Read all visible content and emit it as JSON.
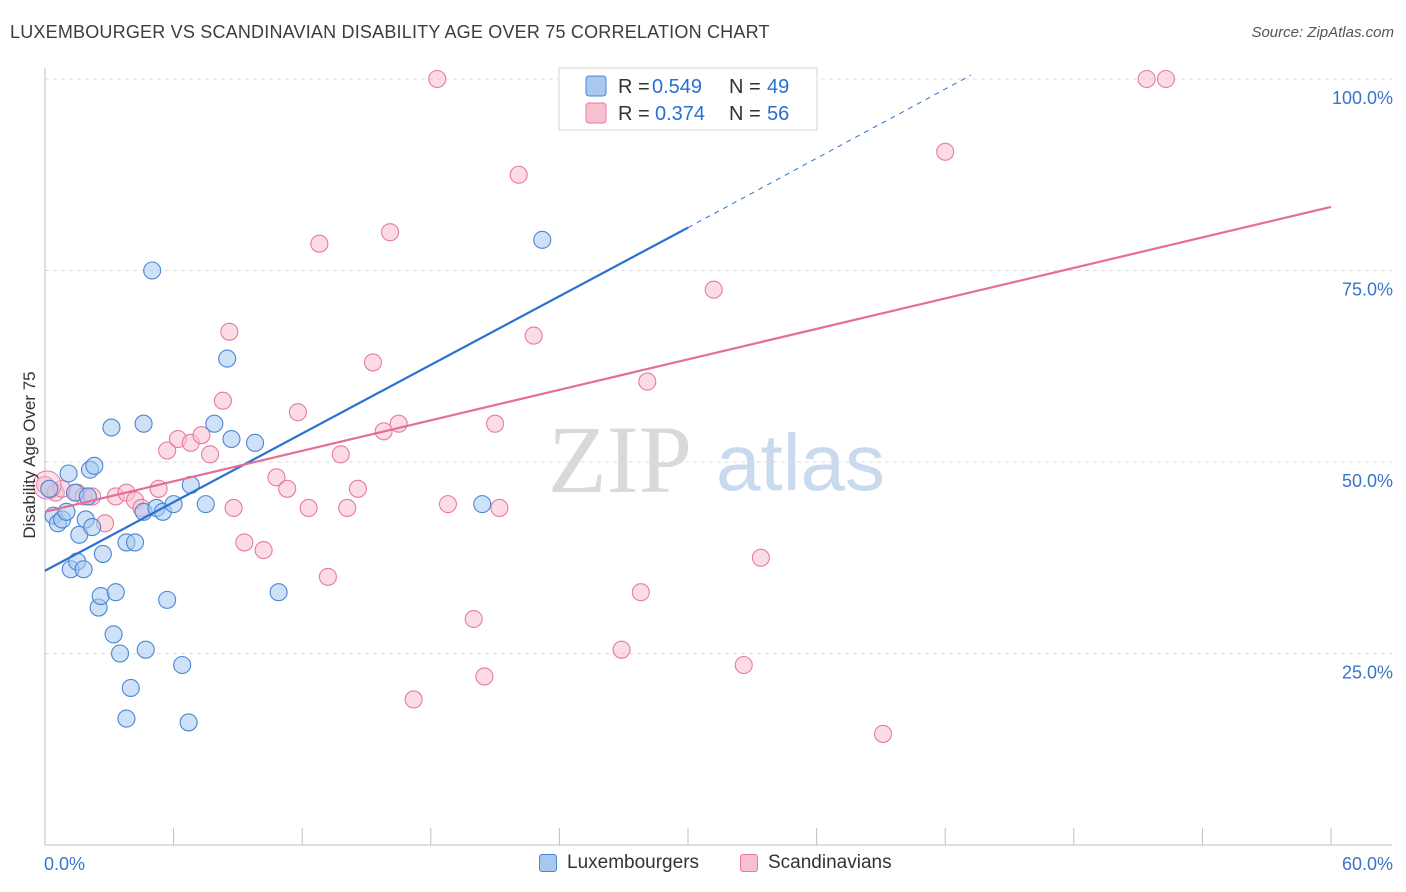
{
  "title": "LUXEMBOURGER VS SCANDINAVIAN DISABILITY AGE OVER 75 CORRELATION CHART",
  "source": "Source: ZipAtlas.com",
  "watermark": {
    "zip": "ZIP",
    "atlas": "atlas"
  },
  "colors": {
    "blue_fill": "#a8c8f0",
    "blue_stroke": "#4a86d4",
    "blue_line": "#2a72d0",
    "pink_fill": "#f7bfd0",
    "pink_stroke": "#e87aa0",
    "pink_line": "#e46e96",
    "tick_label": "#3a74c8",
    "grid": "#d8d8d8"
  },
  "legend": {
    "rows": [
      {
        "r_label": "R =",
        "r_value": "0.549",
        "n_label": "N =",
        "n_value": "49"
      },
      {
        "r_label": "R =",
        "r_value": "0.374",
        "n_label": "N =",
        "n_value": "56"
      }
    ]
  },
  "bottom_legend": {
    "series1": "Luxembourgers",
    "series2": "Scandinavians"
  },
  "chart_data": {
    "type": "scatter",
    "title": "LUXEMBOURGER VS SCANDINAVIAN DISABILITY AGE OVER 75 CORRELATION CHART",
    "xlabel": "",
    "ylabel": "Disability Age Over 75",
    "xlim": [
      0,
      60
    ],
    "ylim": [
      0,
      104
    ],
    "x_tick_labels": [
      "0.0%",
      "60.0%"
    ],
    "y_ticks": [
      25,
      50,
      75,
      100
    ],
    "y_tick_labels": [
      "25.0%",
      "50.0%",
      "75.0%",
      "100.0%"
    ],
    "grid": "horizontal dashed",
    "legend_position": "top-center",
    "series": [
      {
        "name": "Luxembourgers",
        "color": "#4a86d4",
        "r": 0.549,
        "n": 49,
        "trend": {
          "x0": 0,
          "y0": 35.8,
          "x1": 30,
          "y1": 80.6,
          "dashed_to_x": 43.2,
          "dashed_to_y": 100.5
        },
        "points": [
          [
            0.2,
            46.5
          ],
          [
            0.4,
            43.0
          ],
          [
            0.6,
            42.0
          ],
          [
            0.8,
            42.5
          ],
          [
            1.0,
            43.5
          ],
          [
            1.1,
            48.5
          ],
          [
            1.2,
            36.0
          ],
          [
            1.4,
            46.0
          ],
          [
            1.5,
            37.0
          ],
          [
            1.6,
            40.5
          ],
          [
            1.8,
            36.0
          ],
          [
            1.9,
            42.5
          ],
          [
            2.0,
            45.5
          ],
          [
            2.1,
            49.0
          ],
          [
            2.2,
            41.5
          ],
          [
            2.3,
            49.5
          ],
          [
            2.5,
            31.0
          ],
          [
            2.6,
            32.5
          ],
          [
            2.7,
            38.0
          ],
          [
            3.1,
            54.5
          ],
          [
            3.2,
            27.5
          ],
          [
            3.3,
            33.0
          ],
          [
            3.5,
            25.0
          ],
          [
            3.8,
            39.5
          ],
          [
            3.8,
            16.5
          ],
          [
            4.0,
            20.5
          ],
          [
            4.2,
            39.5
          ],
          [
            4.6,
            43.5
          ],
          [
            4.6,
            55.0
          ],
          [
            4.7,
            25.5
          ],
          [
            5.0,
            75.0
          ],
          [
            5.2,
            44.0
          ],
          [
            5.5,
            43.5
          ],
          [
            5.7,
            32.0
          ],
          [
            6.0,
            44.5
          ],
          [
            6.4,
            23.5
          ],
          [
            6.7,
            16.0
          ],
          [
            6.8,
            47.0
          ],
          [
            7.5,
            44.5
          ],
          [
            7.9,
            55.0
          ],
          [
            8.5,
            63.5
          ],
          [
            8.7,
            53.0
          ],
          [
            9.8,
            52.5
          ],
          [
            10.9,
            33.0
          ],
          [
            20.4,
            44.5
          ],
          [
            23.2,
            79.0
          ]
        ]
      },
      {
        "name": "Scandinavians",
        "color": "#e87aa0",
        "r": 0.374,
        "n": 56,
        "trend": {
          "x0": 0,
          "y0": 43.5,
          "x1": 60,
          "y1": 83.3
        },
        "points": [
          [
            0.0,
            47.0
          ],
          [
            0.5,
            46.0
          ],
          [
            0.8,
            46.5
          ],
          [
            1.5,
            46.0
          ],
          [
            1.8,
            45.5
          ],
          [
            2.2,
            45.5
          ],
          [
            2.8,
            42.0
          ],
          [
            3.3,
            45.5
          ],
          [
            3.8,
            46.0
          ],
          [
            4.2,
            45.0
          ],
          [
            4.5,
            44.0
          ],
          [
            5.3,
            46.5
          ],
          [
            5.7,
            51.5
          ],
          [
            6.2,
            53.0
          ],
          [
            6.8,
            52.5
          ],
          [
            7.3,
            53.5
          ],
          [
            7.7,
            51.0
          ],
          [
            8.3,
            58.0
          ],
          [
            8.6,
            67.0
          ],
          [
            8.8,
            44.0
          ],
          [
            9.3,
            39.5
          ],
          [
            10.2,
            38.5
          ],
          [
            10.8,
            48.0
          ],
          [
            11.3,
            46.5
          ],
          [
            11.8,
            56.5
          ],
          [
            12.3,
            44.0
          ],
          [
            12.8,
            78.5
          ],
          [
            13.2,
            35.0
          ],
          [
            13.8,
            51.0
          ],
          [
            14.1,
            44.0
          ],
          [
            14.6,
            46.5
          ],
          [
            15.3,
            63.0
          ],
          [
            15.8,
            54.0
          ],
          [
            16.1,
            80.0
          ],
          [
            16.5,
            55.0
          ],
          [
            17.2,
            19.0
          ],
          [
            18.3,
            100.0
          ],
          [
            18.8,
            44.5
          ],
          [
            20.0,
            29.5
          ],
          [
            20.5,
            22.0
          ],
          [
            21.0,
            55.0
          ],
          [
            21.2,
            44.0
          ],
          [
            22.1,
            87.5
          ],
          [
            22.8,
            66.5
          ],
          [
            26.9,
            25.5
          ],
          [
            27.8,
            33.0
          ],
          [
            28.1,
            60.5
          ],
          [
            31.2,
            72.5
          ],
          [
            32.6,
            23.5
          ],
          [
            33.4,
            37.5
          ],
          [
            39.1,
            14.5
          ],
          [
            42.0,
            90.5
          ],
          [
            51.4,
            100.0
          ],
          [
            52.3,
            100.0
          ]
        ]
      }
    ]
  }
}
